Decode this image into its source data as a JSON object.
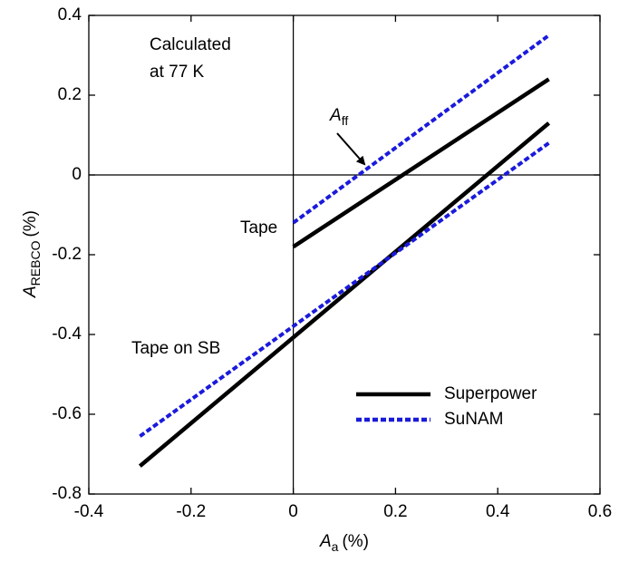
{
  "chart_data": {
    "type": "line",
    "x_label": {
      "symbol": "A",
      "subscript": "a",
      "unit": "(%)"
    },
    "y_label": {
      "symbol": "A",
      "subscript": "REBCO",
      "unit": "(%)"
    },
    "xlim": [
      -0.4,
      0.6
    ],
    "xticks": [
      -0.4,
      -0.2,
      0,
      0.2,
      0.4,
      0.6
    ],
    "ylim": [
      -0.8,
      0.4
    ],
    "yticks": [
      -0.8,
      -0.6,
      -0.4,
      -0.2,
      0,
      0.2,
      0.4
    ],
    "series": [
      {
        "name": "Superpower",
        "color": "#000000",
        "dash": false,
        "x": [
          0,
          0.5,
          null,
          -0.3,
          0.5
        ],
        "values": [
          -0.18,
          0.24,
          null,
          -0.73,
          0.13
        ]
      },
      {
        "name": "SuNAM",
        "color": "#1a1adc",
        "dash": true,
        "x": [
          0,
          0.5,
          null,
          -0.3,
          0.5
        ],
        "values": [
          -0.12,
          0.35,
          null,
          -0.655,
          0.08
        ]
      }
    ],
    "annotations": {
      "calculated": [
        "Calculated",
        "at 77 K"
      ],
      "tape": "Tape",
      "tape_on_sb": "Tape on SB",
      "aff": {
        "symbol": "A",
        "subscript": "ff"
      }
    },
    "legend": "lower right"
  }
}
